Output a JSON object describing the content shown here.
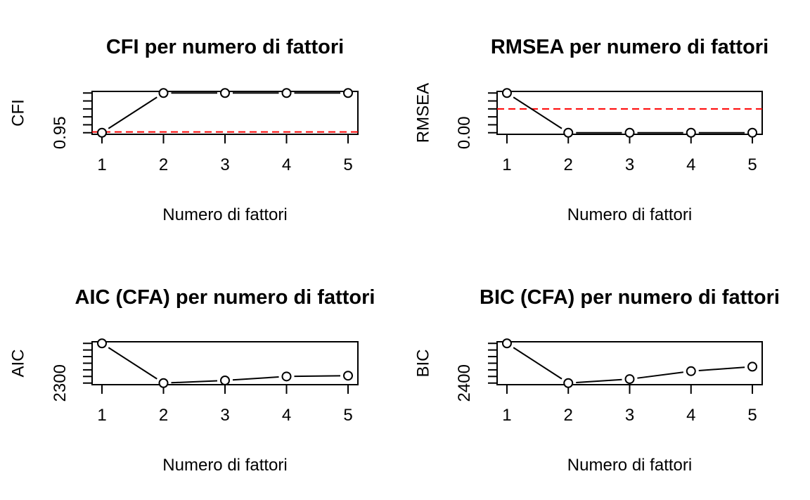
{
  "colors": {
    "line": "#000000",
    "reference": "#ff0000",
    "background": "#ffffff"
  },
  "chart_data": [
    {
      "type": "line",
      "title": "CFI per numero di fattori",
      "xlabel": "Numero di fattori",
      "ylabel": "CFI",
      "x": [
        1,
        2,
        3,
        4,
        5
      ],
      "xticks": [
        "1",
        "2",
        "3",
        "4",
        "5"
      ],
      "values": [
        0.95,
        1.0,
        1.0,
        1.0,
        1.0
      ],
      "yticks_labeled": [
        {
          "value": 0.95,
          "label": "0.95"
        }
      ],
      "yticks_minor": [
        0.96,
        0.97,
        0.98,
        0.99,
        1.0
      ],
      "xlim": [
        0.84,
        5.16
      ],
      "ylim": [
        0.948,
        1.002
      ],
      "reference_line": {
        "value": 0.951,
        "color": "#ff0000",
        "style": "dashed"
      },
      "markers": "open-circle",
      "grid": false,
      "legend": "none"
    },
    {
      "type": "line",
      "title": "RMSEA per numero di fattori",
      "xlabel": "Numero di fattori",
      "ylabel": "RMSEA",
      "x": [
        1,
        2,
        3,
        4,
        5
      ],
      "xticks": [
        "1",
        "2",
        "3",
        "4",
        "5"
      ],
      "values": [
        0.1,
        0.0,
        0.0,
        0.0,
        0.0
      ],
      "yticks_labeled": [
        {
          "value": 0.0,
          "label": "0.00"
        }
      ],
      "yticks_minor": [
        0.02,
        0.04,
        0.06,
        0.08,
        0.1
      ],
      "xlim": [
        0.84,
        5.16
      ],
      "ylim": [
        -0.004,
        0.104
      ],
      "reference_line": {
        "value": 0.06,
        "color": "#ff0000",
        "style": "dashed"
      },
      "markers": "open-circle",
      "grid": false,
      "legend": "none"
    },
    {
      "type": "line",
      "title": "AIC (CFA) per numero di fattori",
      "xlabel": "Numero di fattori",
      "ylabel": "AIC",
      "x": [
        1,
        2,
        3,
        4,
        5
      ],
      "xticks": [
        "1",
        "2",
        "3",
        "4",
        "5"
      ],
      "values": [
        2450,
        2300,
        2310,
        2325,
        2328
      ],
      "yticks_labeled": [
        {
          "value": 2300,
          "label": "2300"
        }
      ],
      "yticks_minor": [
        2325,
        2350,
        2375,
        2400,
        2425,
        2450
      ],
      "xlim": [
        0.84,
        5.16
      ],
      "ylim": [
        2294,
        2456
      ],
      "markers": "open-circle",
      "grid": false,
      "legend": "none"
    },
    {
      "type": "line",
      "title": "BIC (CFA) per numero di fattori",
      "xlabel": "Numero di fattori",
      "ylabel": "BIC",
      "x": [
        1,
        2,
        3,
        4,
        5
      ],
      "xticks": [
        "1",
        "2",
        "3",
        "4",
        "5"
      ],
      "values": [
        2550,
        2400,
        2415,
        2445,
        2462
      ],
      "yticks_labeled": [
        {
          "value": 2400,
          "label": "2400"
        }
      ],
      "yticks_minor": [
        2425,
        2450,
        2475,
        2500,
        2525,
        2550
      ],
      "xlim": [
        0.84,
        5.16
      ],
      "ylim": [
        2394,
        2556
      ],
      "markers": "open-circle",
      "grid": false,
      "legend": "none"
    }
  ]
}
